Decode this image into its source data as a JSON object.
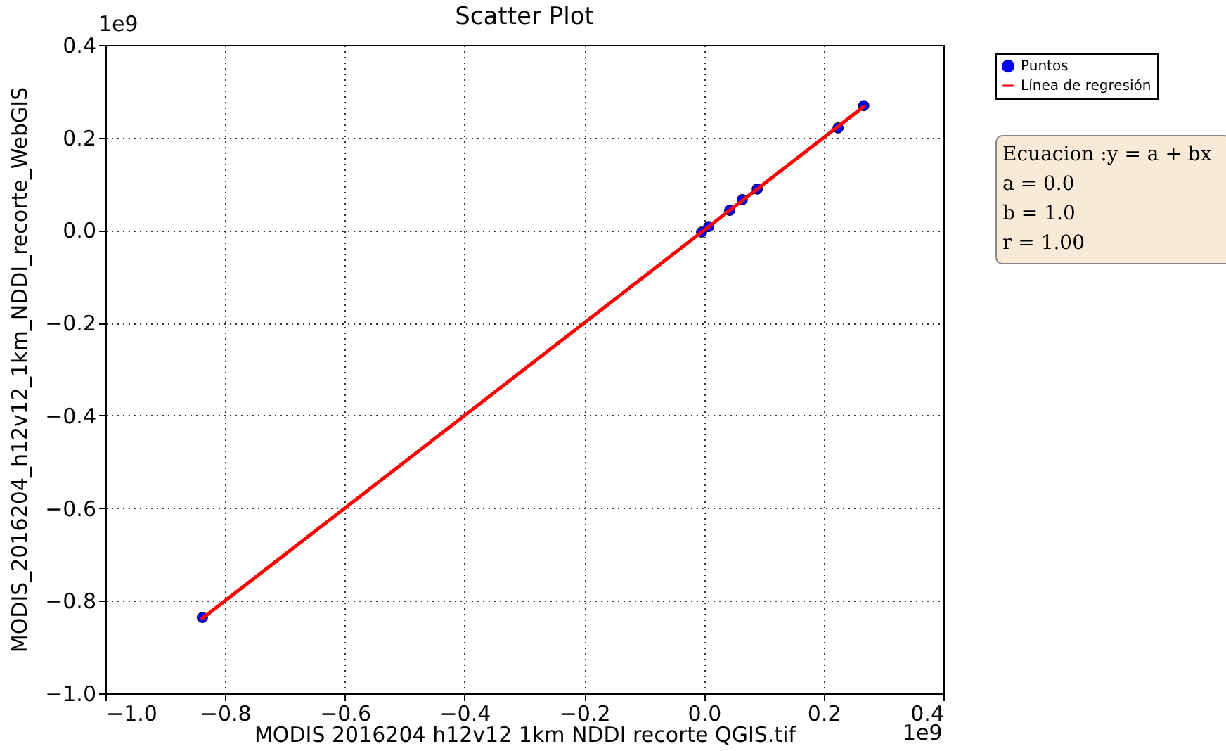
{
  "chart_data": {
    "type": "scatter",
    "title": "Scatter Plot",
    "xlabel": "MODIS 2016204 h12v12 1km NDDI recorte QGIS.tif",
    "ylabel": "MODIS_2016204_h12v12_1km_NDDI_recorte_WebGIS",
    "xlim": [
      -1.0,
      0.4
    ],
    "xticks": [
      {
        "value": -1.0,
        "label": "−1.0"
      },
      {
        "value": -0.8,
        "label": "−0.8"
      },
      {
        "value": -0.6,
        "label": "−0.6"
      },
      {
        "value": -0.4,
        "label": "−0.4"
      },
      {
        "value": -0.2,
        "label": "−0.2"
      },
      {
        "value": 0,
        "label": "0.0"
      },
      {
        "value": 0.2,
        "label": "0.2"
      },
      {
        "value": 0.4,
        "label": "0.4"
      }
    ],
    "ylim": [
      -1.0,
      0.4
    ],
    "yticks": [
      {
        "value": -1.0,
        "label": "−1.0"
      },
      {
        "value": -0.8,
        "label": "−0.8"
      },
      {
        "value": -0.6,
        "label": "−0.6"
      },
      {
        "value": -0.4,
        "label": "−0.4"
      },
      {
        "value": -0.2,
        "label": "−0.2"
      },
      {
        "value": 0,
        "label": "0.0"
      },
      {
        "value": 0.2,
        "label": "0.2"
      },
      {
        "value": 0.4,
        "label": "0.4"
      }
    ],
    "grid": true,
    "legend": "top right",
    "line_style": "solid",
    "series": [
      {
        "name": "Puntos",
        "marker": "circle",
        "color": "#0000ff",
        "x": [
          -0.838,
          -0.004,
          0.008,
          0.043,
          0.064,
          0.089,
          0.224,
          0.267
        ],
        "values": [
          -0.836,
          -0.004,
          0.008,
          0.043,
          0.066,
          0.089,
          0.221,
          0.269
        ]
      },
      {
        "name": "Línea de regresión",
        "type": "line",
        "color": "#ff0000",
        "x": [
          -0.838,
          0.267
        ],
        "values": [
          -0.838,
          0.267
        ]
      }
    ],
    "annotations": [
      "1e9",
      "1e9",
      "Ecuacion :y = a + bx",
      "a = 0.0",
      "b = 1.0",
      "r = 1.00"
    ]
  }
}
